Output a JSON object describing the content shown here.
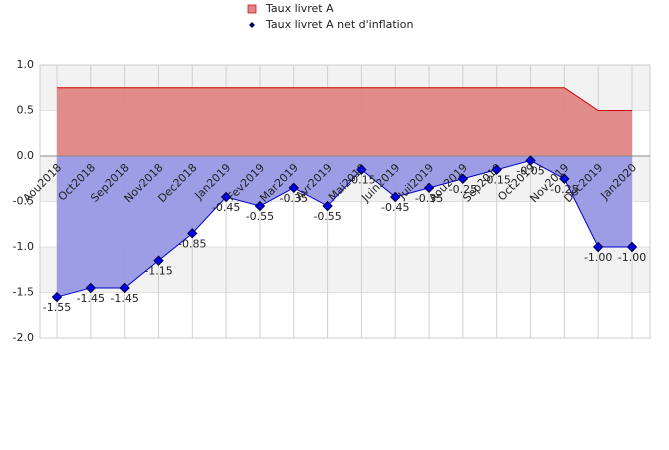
{
  "chart_data": {
    "type": "area",
    "categories": [
      "Aou2018",
      "Oct2018",
      "Sep2018",
      "Nov2018",
      "Dec2018",
      "Jan2019",
      "Fev2019",
      "Mar2019",
      "Avr2019",
      "Mai2019",
      "Juin2019",
      "Juil2019",
      "Aou2019",
      "Sep2019",
      "Oct2019",
      "Nov2019",
      "Dec2019",
      "Jan2020"
    ],
    "series": [
      {
        "name": "Taux livret A",
        "color": "#e08585",
        "line_color": "#cc0000",
        "values": [
          0.75,
          0.75,
          0.75,
          0.75,
          0.75,
          0.75,
          0.75,
          0.75,
          0.75,
          0.75,
          0.75,
          0.75,
          0.75,
          0.75,
          0.75,
          0.75,
          0.5,
          0.5
        ]
      },
      {
        "name": "Taux livret A net d'inflation",
        "color": "#9898e4",
        "line_color": "#0000cc",
        "values": [
          -1.55,
          -1.45,
          -1.45,
          -1.15,
          -0.85,
          -0.45,
          -0.55,
          -0.35,
          -0.55,
          -0.15,
          -0.45,
          -0.35,
          -0.25,
          -0.15,
          -0.05,
          -0.25,
          -1.0,
          -1.0
        ],
        "value_labels": [
          "-1.55",
          "-1.45",
          "-1.45",
          "-1.15",
          "-0.85",
          "-0.45",
          "-0.55",
          "-0.35",
          "-0.55",
          "-0.15",
          "-0.45",
          "-0.35",
          "-0.25",
          "-0.15",
          "-0.05",
          "-0.25",
          "-1.00",
          "-1.00"
        ]
      }
    ],
    "ylim": [
      -2.0,
      1.0
    ],
    "yticks": [
      {
        "value": 1.0,
        "label": "1.0"
      },
      0.5,
      {
        "value": 0.0,
        "label": "0.0"
      },
      -0.5,
      {
        "value": -1.0,
        "label": "-1.0"
      },
      -1.5,
      {
        "value": -2.0,
        "label": "-2.0"
      }
    ],
    "grid": true
  }
}
